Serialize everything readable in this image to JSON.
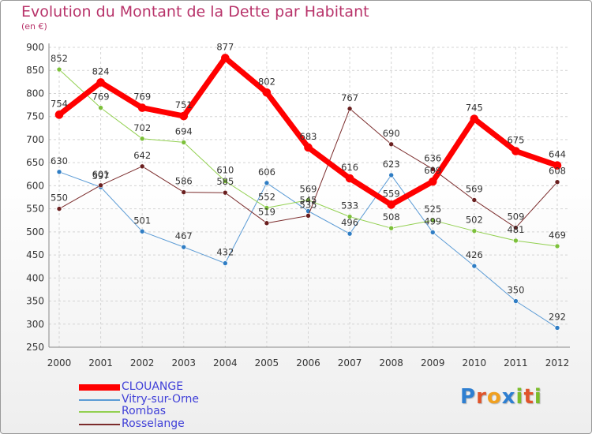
{
  "title": "Evolution du Montant de la Dette par Habitant",
  "subtitle": "(en €)",
  "brand": {
    "letters": [
      "P",
      "r",
      "o",
      "x",
      "i",
      "t",
      "i"
    ],
    "colors": [
      "#2e7fd1",
      "#e0542a",
      "#f0a020",
      "#2e7fd1",
      "#7cbd2a",
      "#e0542a",
      "#7cbd2a"
    ]
  },
  "chart_data": {
    "type": "line",
    "title": "Evolution du Montant de la Dette par Habitant",
    "subtitle": "(en €)",
    "xlabel": "",
    "ylabel": "",
    "x": [
      "2000",
      "2001",
      "2002",
      "2003",
      "2004",
      "2005",
      "2006",
      "2007",
      "2008",
      "2009",
      "2010",
      "2011",
      "2012"
    ],
    "ylim": [
      250,
      900
    ],
    "yticks": [
      250,
      300,
      350,
      400,
      450,
      500,
      550,
      600,
      650,
      700,
      750,
      800,
      850,
      900
    ],
    "grid": true,
    "legend_position": "bottom-left",
    "series": [
      {
        "name": "Vitry-sur-Orne",
        "color": "#5b9bd5",
        "marker": "#2f7dc4",
        "width": 1,
        "values": [
          630,
          597,
          501,
          467,
          432,
          606,
          545,
          496,
          623,
          499,
          426,
          350,
          292
        ],
        "show_labels": true
      },
      {
        "name": "Rombas",
        "color": "#92d050",
        "marker": "#7cc03a",
        "width": 1,
        "values": [
          852,
          769,
          702,
          694,
          610,
          552,
          569,
          533,
          508,
          525,
          502,
          481,
          469
        ],
        "show_labels": true
      },
      {
        "name": "Rosselange",
        "color": "#7b2c2c",
        "marker": "#6a1f1f",
        "width": 1,
        "values": [
          550,
          601,
          642,
          586,
          585,
          519,
          535,
          767,
          690,
          636,
          569,
          509,
          608
        ],
        "show_labels": true
      },
      {
        "name": "CLOUANGE",
        "color": "#ff0000",
        "marker": "#ff0000",
        "width": 7,
        "values": [
          754,
          824,
          769,
          751,
          877,
          802,
          683,
          616,
          559,
          609,
          745,
          675,
          644
        ],
        "show_labels": true
      }
    ]
  },
  "legend": [
    {
      "name": "CLOUANGE",
      "color": "#ff0000",
      "thick": true
    },
    {
      "name": "Vitry-sur-Orne",
      "color": "#5b9bd5",
      "thick": false
    },
    {
      "name": "Rombas",
      "color": "#92d050",
      "thick": false
    },
    {
      "name": "Rosselange",
      "color": "#7b2c2c",
      "thick": false
    }
  ]
}
